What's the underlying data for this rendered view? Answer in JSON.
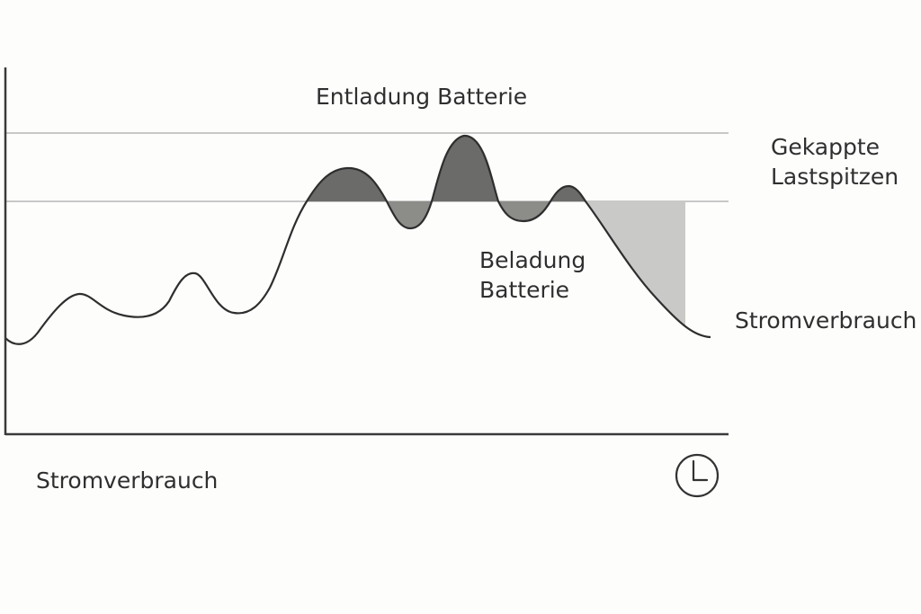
{
  "labels": {
    "top": "Entladung Batterie",
    "right_top_line1": "Gekappte",
    "right_top_line2": "Lastspitzen",
    "middle_line1": "Beladung",
    "middle_line2": "Batterie",
    "curve": "Stromverbrauch",
    "bottom_left": "Stromverbrauch"
  },
  "icons": {
    "time_axis": "clock-icon"
  },
  "colors": {
    "axis": "#3a3a3a",
    "curve": "#2e2e2e",
    "guide_line": "#c8c8c8",
    "discharge_fill": "#6b6b69",
    "charge_fill": "#8c8c89",
    "capped_peak_fill": "#c9c9c7"
  }
}
